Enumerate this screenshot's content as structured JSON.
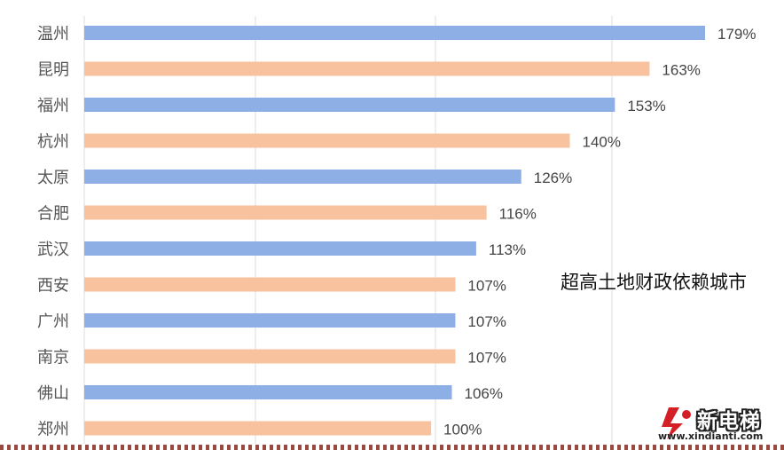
{
  "chart_data": {
    "type": "bar",
    "orientation": "horizontal",
    "categories": [
      "温州",
      "昆明",
      "福州",
      "杭州",
      "太原",
      "合肥",
      "武汉",
      "西安",
      "广州",
      "南京",
      "佛山",
      "郑州"
    ],
    "values": [
      179,
      163,
      153,
      140,
      126,
      116,
      113,
      107,
      107,
      107,
      106,
      100
    ],
    "value_labels": [
      "179%",
      "163%",
      "153%",
      "140%",
      "126%",
      "116%",
      "113%",
      "107%",
      "107%",
      "107%",
      "106%",
      "100%"
    ],
    "bar_colors": [
      "#8dafe6",
      "#f7c29d"
    ],
    "unit": "%",
    "xlim": [
      0,
      180
    ],
    "grid": "vertical",
    "annotation": "超高土地财政依赖城市"
  },
  "watermark": {
    "name": "新电梯",
    "url": "www.xindianti.com"
  }
}
